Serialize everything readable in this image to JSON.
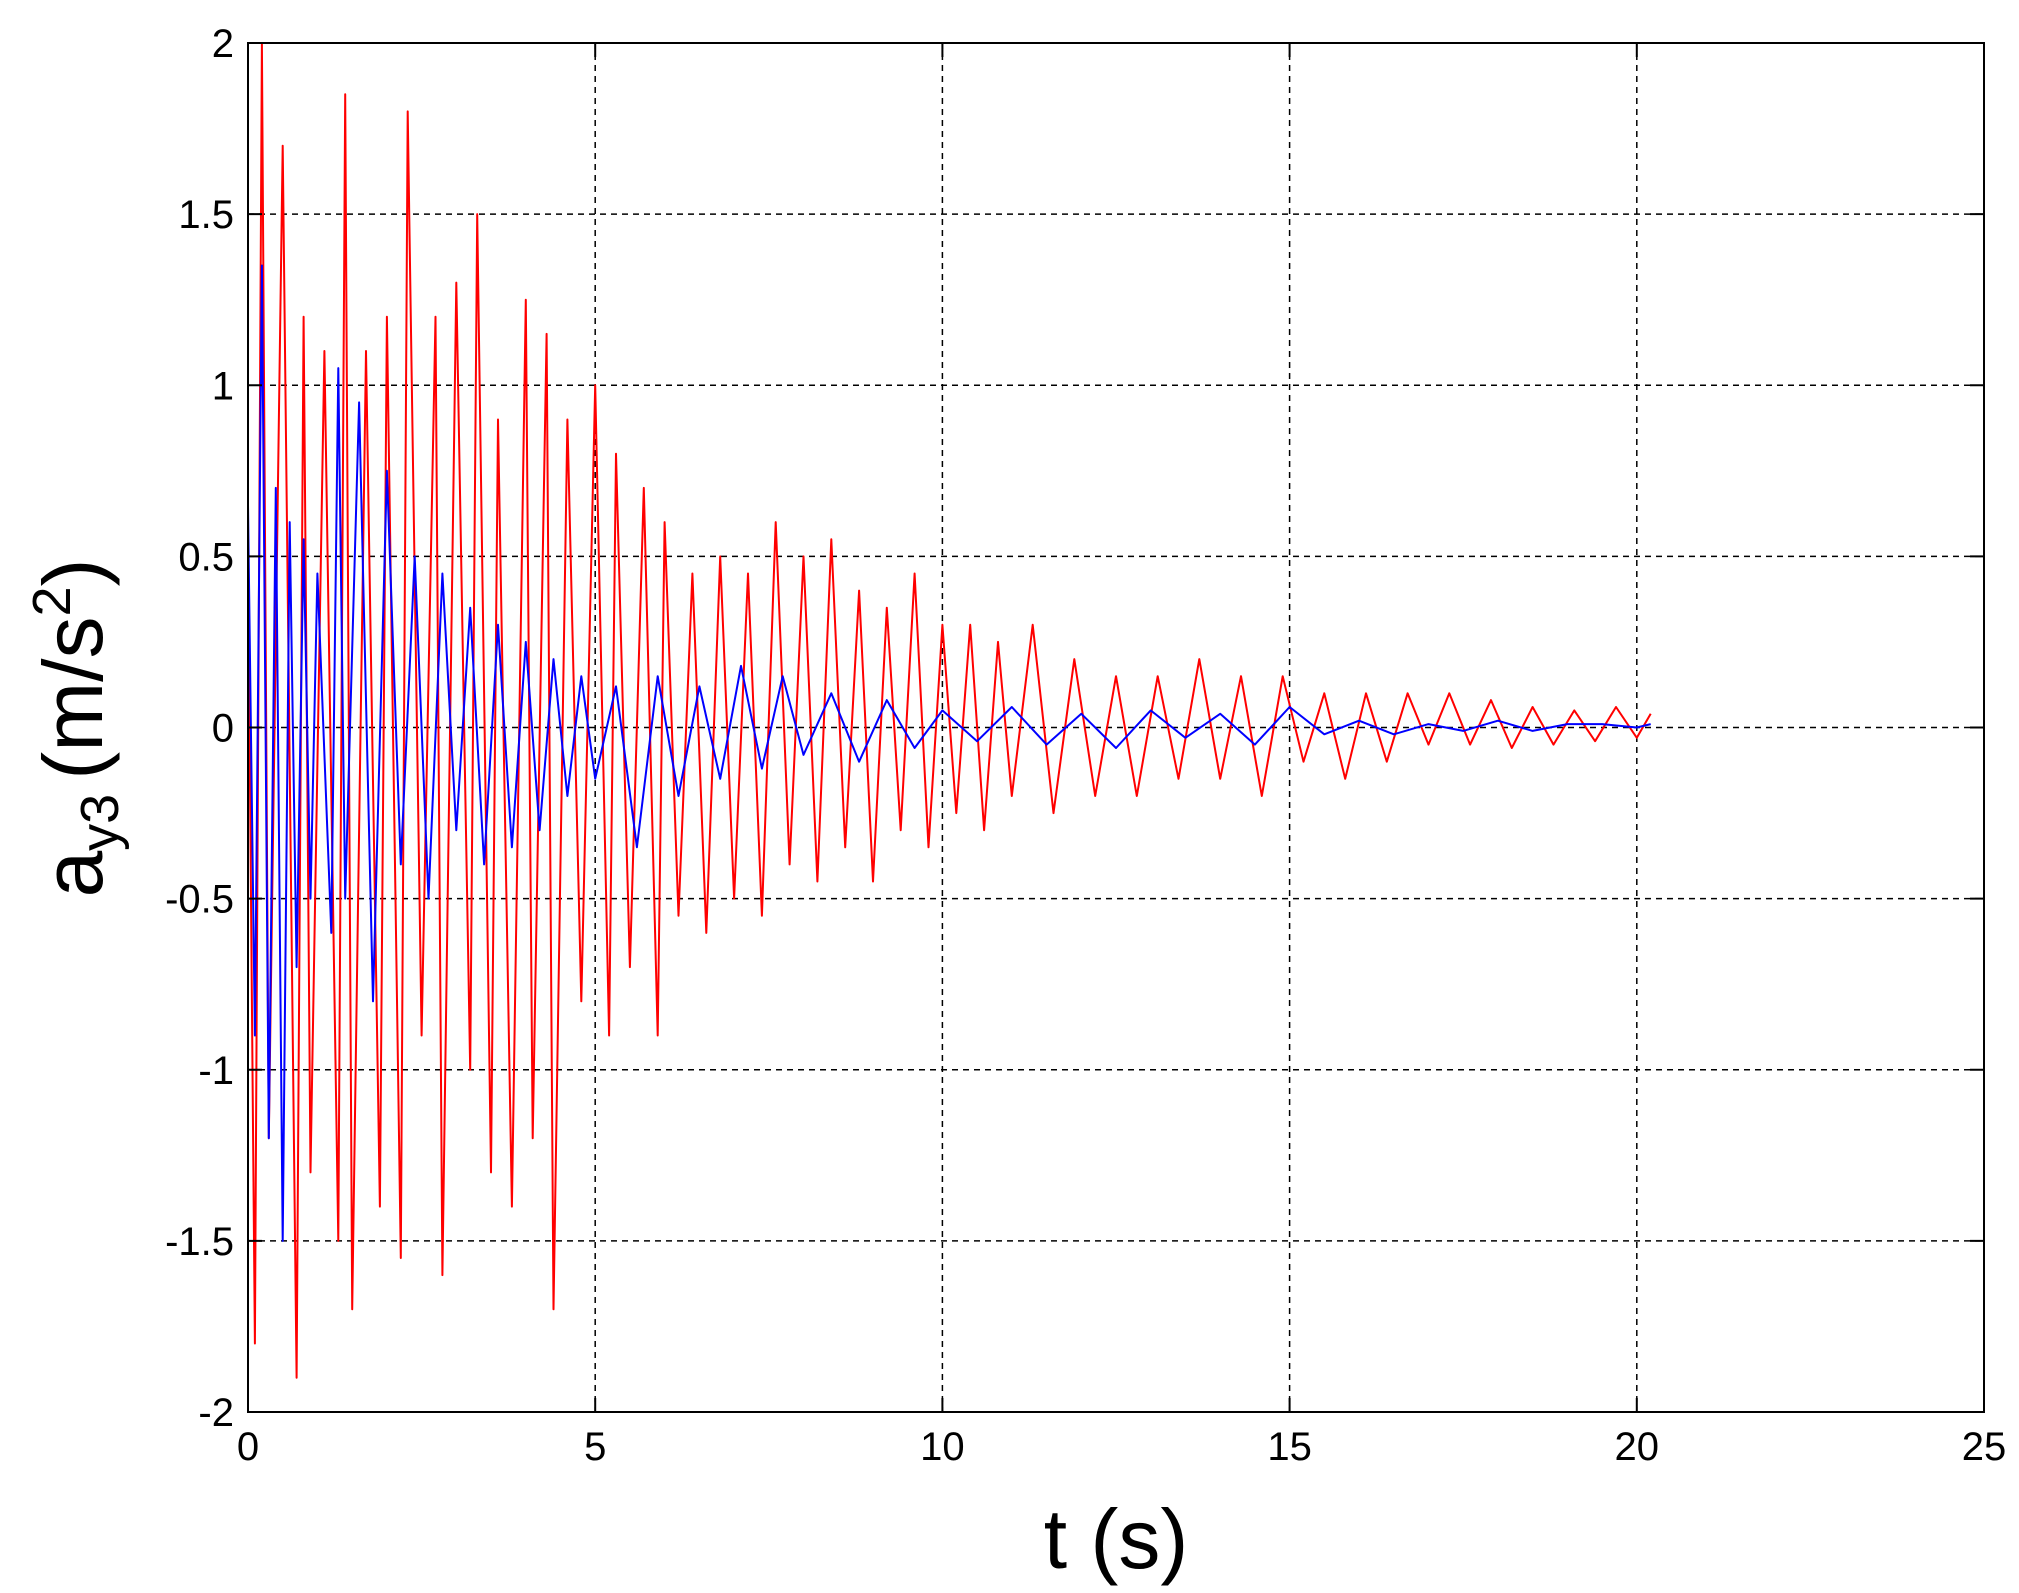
{
  "chart_data": {
    "type": "line",
    "title": "",
    "xlabel": "t (s)",
    "ylabel": {
      "base": "a",
      "subscript": "y3",
      "unit_prefix": "(m/s",
      "unit_superscript": "2",
      "unit_suffix": ")"
    },
    "xlim": [
      0,
      25
    ],
    "ylim": [
      -2,
      2
    ],
    "xticks": [
      0,
      5,
      10,
      15,
      20,
      25
    ],
    "yticks": [
      -2,
      -1.5,
      -1,
      -0.5,
      0,
      0.5,
      1,
      1.5,
      2
    ],
    "xtick_labels": [
      "0",
      "5",
      "10",
      "15",
      "20",
      "25"
    ],
    "ytick_labels": [
      "-2",
      "-1.5",
      "-1",
      "-0.5",
      "0",
      "0.5",
      "1",
      "1.5",
      "2"
    ],
    "grid": true,
    "grid_style": "dashed",
    "legend": "none",
    "series": [
      {
        "color": "#ff0000",
        "x": [
          0.0,
          0.1,
          0.2,
          0.3,
          0.5,
          0.7,
          0.8,
          0.9,
          1.1,
          1.3,
          1.4,
          1.5,
          1.7,
          1.9,
          2.0,
          2.2,
          2.3,
          2.5,
          2.7,
          2.8,
          3.0,
          3.2,
          3.3,
          3.5,
          3.6,
          3.8,
          4.0,
          4.1,
          4.3,
          4.4,
          4.6,
          4.8,
          5.0,
          5.2,
          5.3,
          5.5,
          5.7,
          5.9,
          6.0,
          6.2,
          6.4,
          6.6,
          6.8,
          7.0,
          7.2,
          7.4,
          7.6,
          7.8,
          8.0,
          8.2,
          8.4,
          8.6,
          8.8,
          9.0,
          9.2,
          9.4,
          9.6,
          9.8,
          10.0,
          10.2,
          10.4,
          10.6,
          10.8,
          11.0,
          11.3,
          11.6,
          11.9,
          12.2,
          12.5,
          12.8,
          13.1,
          13.4,
          13.7,
          14.0,
          14.3,
          14.6,
          14.9,
          15.2,
          15.5,
          15.8,
          16.1,
          16.4,
          16.7,
          17.0,
          17.3,
          17.6,
          17.9,
          18.2,
          18.5,
          18.8,
          19.1,
          19.4,
          19.7,
          20.0,
          20.2
        ],
        "y": [
          0.5,
          -1.8,
          2.0,
          -1.2,
          1.7,
          -1.9,
          1.2,
          -1.3,
          1.1,
          -1.5,
          1.85,
          -1.7,
          1.1,
          -1.4,
          1.2,
          -1.55,
          1.8,
          -0.9,
          1.2,
          -1.6,
          1.3,
          -1.0,
          1.5,
          -1.3,
          0.9,
          -1.4,
          1.25,
          -1.2,
          1.15,
          -1.7,
          0.9,
          -0.8,
          1.0,
          -0.9,
          0.8,
          -0.7,
          0.7,
          -0.9,
          0.6,
          -0.55,
          0.45,
          -0.6,
          0.5,
          -0.5,
          0.45,
          -0.55,
          0.6,
          -0.4,
          0.5,
          -0.45,
          0.55,
          -0.35,
          0.4,
          -0.45,
          0.35,
          -0.3,
          0.45,
          -0.35,
          0.3,
          -0.25,
          0.3,
          -0.3,
          0.25,
          -0.2,
          0.3,
          -0.25,
          0.2,
          -0.2,
          0.15,
          -0.2,
          0.15,
          -0.15,
          0.2,
          -0.15,
          0.15,
          -0.2,
          0.15,
          -0.1,
          0.1,
          -0.15,
          0.1,
          -0.1,
          0.1,
          -0.05,
          0.1,
          -0.05,
          0.08,
          -0.06,
          0.06,
          -0.05,
          0.05,
          -0.04,
          0.06,
          -0.03,
          0.04
        ]
      },
      {
        "color": "#0000ff",
        "x": [
          0.0,
          0.1,
          0.2,
          0.3,
          0.4,
          0.5,
          0.6,
          0.7,
          0.8,
          0.9,
          1.0,
          1.2,
          1.3,
          1.4,
          1.6,
          1.8,
          2.0,
          2.2,
          2.4,
          2.6,
          2.8,
          3.0,
          3.2,
          3.4,
          3.6,
          3.8,
          4.0,
          4.2,
          4.4,
          4.6,
          4.8,
          5.0,
          5.3,
          5.6,
          5.9,
          6.2,
          6.5,
          6.8,
          7.1,
          7.4,
          7.7,
          8.0,
          8.4,
          8.8,
          9.2,
          9.6,
          10.0,
          10.5,
          11.0,
          11.5,
          12.0,
          12.5,
          13.0,
          13.5,
          14.0,
          14.5,
          15.0,
          15.5,
          16.0,
          16.5,
          17.0,
          17.5,
          18.0,
          18.5,
          19.0,
          19.5,
          20.0,
          20.2
        ],
        "y": [
          0.65,
          -0.9,
          1.35,
          -1.2,
          0.7,
          -1.5,
          0.6,
          -0.7,
          0.55,
          -0.5,
          0.45,
          -0.6,
          1.05,
          -0.5,
          0.95,
          -0.8,
          0.75,
          -0.4,
          0.5,
          -0.5,
          0.45,
          -0.3,
          0.35,
          -0.4,
          0.3,
          -0.35,
          0.25,
          -0.3,
          0.2,
          -0.2,
          0.15,
          -0.15,
          0.12,
          -0.35,
          0.15,
          -0.2,
          0.12,
          -0.15,
          0.18,
          -0.12,
          0.15,
          -0.08,
          0.1,
          -0.1,
          0.08,
          -0.06,
          0.05,
          -0.04,
          0.06,
          -0.05,
          0.04,
          -0.06,
          0.05,
          -0.03,
          0.04,
          -0.05,
          0.06,
          -0.02,
          0.02,
          -0.02,
          0.01,
          -0.01,
          0.02,
          -0.01,
          0.01,
          0.01,
          0.0,
          0.01
        ]
      }
    ]
  }
}
